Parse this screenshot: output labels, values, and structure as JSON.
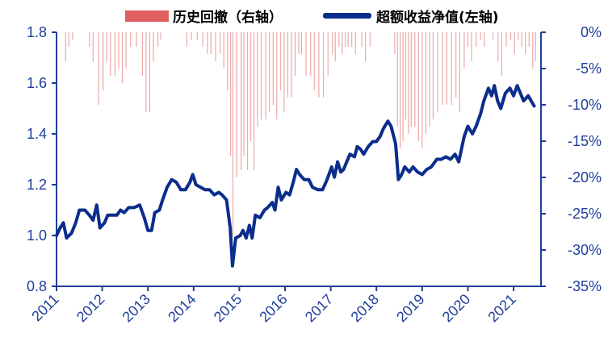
{
  "chart_data": {
    "type": "line",
    "legend": {
      "placement": "top",
      "entries": [
        {
          "label": "历史回撤（右轴）",
          "kind": "bar",
          "color": "#e06060"
        },
        {
          "label": "超额收益净值(左轴)",
          "kind": "line",
          "color": "#0b2d8c"
        }
      ]
    },
    "left_axis": {
      "ylim": [
        0.8,
        1.8
      ],
      "ticks": [
        0.8,
        1.0,
        1.2,
        1.4,
        1.6,
        1.8
      ],
      "tick_labels": [
        "0.8",
        "1.0",
        "1.2",
        "1.4",
        "1.6",
        "1.8"
      ]
    },
    "right_axis": {
      "ylim": [
        -35,
        0
      ],
      "ticks": [
        0,
        -5,
        -10,
        -15,
        -20,
        -25,
        -30,
        -35
      ],
      "tick_labels": [
        "0%",
        "-5%",
        "-10%",
        "-15%",
        "-20%",
        "-25%",
        "-30%",
        "-35%"
      ],
      "inverted": true
    },
    "x_axis": {
      "range": [
        2011.0,
        2021.6
      ],
      "ticks": [
        2011,
        2012,
        2013,
        2014,
        2015,
        2016,
        2017,
        2018,
        2019,
        2020,
        2021
      ],
      "tick_labels": [
        "2011",
        "2012",
        "2013",
        "2014",
        "2015",
        "2016",
        "2017",
        "2018",
        "2019",
        "2020",
        "2021"
      ]
    },
    "colors": {
      "axis": "#1f3f9a",
      "line": "#0b2d8c",
      "bars": "#e06060"
    },
    "grid": false,
    "series": [
      {
        "name": "超额收益净值(左轴)",
        "axis": "left",
        "points": [
          [
            2011.0,
            1.0
          ],
          [
            2011.08,
            1.03
          ],
          [
            2011.15,
            1.05
          ],
          [
            2011.22,
            0.99
          ],
          [
            2011.33,
            1.01
          ],
          [
            2011.42,
            1.05
          ],
          [
            2011.5,
            1.1
          ],
          [
            2011.62,
            1.1
          ],
          [
            2011.72,
            1.08
          ],
          [
            2011.8,
            1.06
          ],
          [
            2011.88,
            1.12
          ],
          [
            2011.95,
            1.03
          ],
          [
            2012.05,
            1.05
          ],
          [
            2012.12,
            1.08
          ],
          [
            2012.22,
            1.08
          ],
          [
            2012.32,
            1.08
          ],
          [
            2012.4,
            1.1
          ],
          [
            2012.48,
            1.09
          ],
          [
            2012.58,
            1.11
          ],
          [
            2012.7,
            1.11
          ],
          [
            2012.82,
            1.12
          ],
          [
            2012.92,
            1.07
          ],
          [
            2013.0,
            1.02
          ],
          [
            2013.08,
            1.02
          ],
          [
            2013.15,
            1.09
          ],
          [
            2013.25,
            1.1
          ],
          [
            2013.32,
            1.14
          ],
          [
            2013.42,
            1.19
          ],
          [
            2013.52,
            1.22
          ],
          [
            2013.62,
            1.21
          ],
          [
            2013.72,
            1.18
          ],
          [
            2013.82,
            1.18
          ],
          [
            2013.92,
            1.21
          ],
          [
            2013.98,
            1.24
          ],
          [
            2014.05,
            1.2
          ],
          [
            2014.15,
            1.19
          ],
          [
            2014.25,
            1.18
          ],
          [
            2014.35,
            1.18
          ],
          [
            2014.45,
            1.16
          ],
          [
            2014.55,
            1.17
          ],
          [
            2014.62,
            1.16
          ],
          [
            2014.72,
            1.14
          ],
          [
            2014.8,
            1.03
          ],
          [
            2014.85,
            0.88
          ],
          [
            2014.92,
            0.99
          ],
          [
            2015.02,
            1.0
          ],
          [
            2015.08,
            1.02
          ],
          [
            2015.15,
            0.99
          ],
          [
            2015.22,
            1.04
          ],
          [
            2015.28,
            0.99
          ],
          [
            2015.35,
            1.08
          ],
          [
            2015.45,
            1.07
          ],
          [
            2015.55,
            1.1
          ],
          [
            2015.62,
            1.11
          ],
          [
            2015.72,
            1.13
          ],
          [
            2015.78,
            1.1
          ],
          [
            2015.85,
            1.19
          ],
          [
            2015.92,
            1.14
          ],
          [
            2016.02,
            1.17
          ],
          [
            2016.1,
            1.16
          ],
          [
            2016.18,
            1.21
          ],
          [
            2016.25,
            1.26
          ],
          [
            2016.32,
            1.24
          ],
          [
            2016.42,
            1.22
          ],
          [
            2016.52,
            1.22
          ],
          [
            2016.6,
            1.19
          ],
          [
            2016.72,
            1.18
          ],
          [
            2016.82,
            1.18
          ],
          [
            2016.92,
            1.22
          ],
          [
            2017.02,
            1.27
          ],
          [
            2017.08,
            1.23
          ],
          [
            2017.15,
            1.29
          ],
          [
            2017.22,
            1.25
          ],
          [
            2017.28,
            1.26
          ],
          [
            2017.35,
            1.29
          ],
          [
            2017.42,
            1.32
          ],
          [
            2017.52,
            1.31
          ],
          [
            2017.58,
            1.35
          ],
          [
            2017.65,
            1.34
          ],
          [
            2017.72,
            1.32
          ],
          [
            2017.82,
            1.35
          ],
          [
            2017.92,
            1.37
          ],
          [
            2018.0,
            1.37
          ],
          [
            2018.08,
            1.39
          ],
          [
            2018.15,
            1.42
          ],
          [
            2018.25,
            1.45
          ],
          [
            2018.32,
            1.43
          ],
          [
            2018.42,
            1.36
          ],
          [
            2018.48,
            1.22
          ],
          [
            2018.55,
            1.24
          ],
          [
            2018.62,
            1.27
          ],
          [
            2018.72,
            1.25
          ],
          [
            2018.8,
            1.27
          ],
          [
            2018.9,
            1.25
          ],
          [
            2019.0,
            1.24
          ],
          [
            2019.1,
            1.26
          ],
          [
            2019.2,
            1.27
          ],
          [
            2019.32,
            1.3
          ],
          [
            2019.42,
            1.3
          ],
          [
            2019.52,
            1.31
          ],
          [
            2019.62,
            1.3
          ],
          [
            2019.72,
            1.32
          ],
          [
            2019.8,
            1.29
          ],
          [
            2019.92,
            1.39
          ],
          [
            2020.0,
            1.43
          ],
          [
            2020.1,
            1.4
          ],
          [
            2020.18,
            1.43
          ],
          [
            2020.28,
            1.48
          ],
          [
            2020.35,
            1.53
          ],
          [
            2020.45,
            1.58
          ],
          [
            2020.52,
            1.55
          ],
          [
            2020.58,
            1.59
          ],
          [
            2020.65,
            1.53
          ],
          [
            2020.72,
            1.5
          ],
          [
            2020.82,
            1.56
          ],
          [
            2020.92,
            1.58
          ],
          [
            2021.0,
            1.55
          ],
          [
            2021.08,
            1.59
          ],
          [
            2021.15,
            1.56
          ],
          [
            2021.22,
            1.53
          ],
          [
            2021.32,
            1.55
          ],
          [
            2021.45,
            1.51
          ]
        ]
      },
      {
        "name": "历史回撤（右轴）",
        "axis": "right",
        "type": "bar",
        "points": [
          [
            2011.2,
            -4
          ],
          [
            2011.27,
            -2
          ],
          [
            2011.35,
            -1
          ],
          [
            2011.72,
            -2
          ],
          [
            2011.8,
            -4
          ],
          [
            2011.92,
            -10
          ],
          [
            2012.02,
            -8
          ],
          [
            2012.1,
            -4
          ],
          [
            2012.18,
            -6
          ],
          [
            2012.28,
            -6
          ],
          [
            2012.36,
            -5
          ],
          [
            2012.44,
            -7
          ],
          [
            2012.52,
            -5
          ],
          [
            2012.62,
            -2
          ],
          [
            2012.75,
            -2
          ],
          [
            2012.88,
            -6
          ],
          [
            2012.96,
            -11
          ],
          [
            2013.04,
            -11
          ],
          [
            2013.12,
            -4
          ],
          [
            2013.22,
            -2
          ],
          [
            2013.28,
            -1
          ],
          [
            2013.85,
            -2
          ],
          [
            2013.95,
            -1
          ],
          [
            2014.08,
            -1
          ],
          [
            2014.2,
            -2
          ],
          [
            2014.3,
            -3
          ],
          [
            2014.38,
            -3
          ],
          [
            2014.48,
            -4
          ],
          [
            2014.58,
            -3
          ],
          [
            2014.66,
            -5
          ],
          [
            2014.74,
            -8
          ],
          [
            2014.81,
            -17
          ],
          [
            2014.86,
            -28
          ],
          [
            2014.94,
            -20
          ],
          [
            2015.04,
            -19
          ],
          [
            2015.1,
            -17
          ],
          [
            2015.18,
            -19
          ],
          [
            2015.25,
            -15
          ],
          [
            2015.32,
            -19
          ],
          [
            2015.4,
            -13
          ],
          [
            2015.48,
            -12
          ],
          [
            2015.58,
            -12
          ],
          [
            2015.66,
            -11
          ],
          [
            2015.74,
            -10
          ],
          [
            2015.82,
            -12
          ],
          [
            2015.9,
            -8
          ],
          [
            2015.98,
            -11
          ],
          [
            2016.06,
            -9
          ],
          [
            2016.14,
            -9
          ],
          [
            2016.22,
            -6
          ],
          [
            2016.3,
            -3
          ],
          [
            2016.36,
            -3
          ],
          [
            2016.46,
            -6
          ],
          [
            2016.56,
            -6
          ],
          [
            2016.64,
            -8
          ],
          [
            2016.74,
            -9
          ],
          [
            2016.84,
            -9
          ],
          [
            2016.94,
            -6
          ],
          [
            2017.04,
            -3
          ],
          [
            2017.1,
            -4
          ],
          [
            2017.18,
            -2
          ],
          [
            2017.25,
            -3
          ],
          [
            2017.32,
            -2
          ],
          [
            2017.38,
            -2
          ],
          [
            2017.46,
            -2
          ],
          [
            2017.54,
            -3
          ],
          [
            2017.68,
            -2
          ],
          [
            2017.76,
            -4
          ],
          [
            2017.86,
            -2
          ],
          [
            2018.4,
            -3
          ],
          [
            2018.46,
            -13
          ],
          [
            2018.52,
            -16
          ],
          [
            2018.58,
            -15
          ],
          [
            2018.64,
            -12
          ],
          [
            2018.7,
            -14
          ],
          [
            2018.76,
            -13
          ],
          [
            2018.84,
            -13
          ],
          [
            2018.92,
            -15
          ],
          [
            2019.0,
            -16
          ],
          [
            2019.08,
            -14
          ],
          [
            2019.16,
            -13
          ],
          [
            2019.24,
            -12
          ],
          [
            2019.34,
            -11
          ],
          [
            2019.44,
            -10
          ],
          [
            2019.54,
            -10
          ],
          [
            2019.64,
            -10
          ],
          [
            2019.74,
            -9
          ],
          [
            2019.82,
            -11
          ],
          [
            2019.92,
            -5
          ],
          [
            2020.0,
            -2
          ],
          [
            2020.08,
            -4
          ],
          [
            2020.18,
            -2
          ],
          [
            2020.28,
            -1
          ],
          [
            2020.36,
            -2
          ],
          [
            2020.55,
            -1
          ],
          [
            2020.66,
            -4
          ],
          [
            2020.74,
            -6
          ],
          [
            2020.84,
            -2
          ],
          [
            2020.94,
            -1
          ],
          [
            2021.02,
            -3
          ],
          [
            2021.1,
            -1
          ],
          [
            2021.18,
            -2
          ],
          [
            2021.26,
            -3
          ],
          [
            2021.34,
            -2
          ],
          [
            2021.42,
            -5
          ],
          [
            2021.48,
            -4
          ]
        ]
      }
    ]
  }
}
